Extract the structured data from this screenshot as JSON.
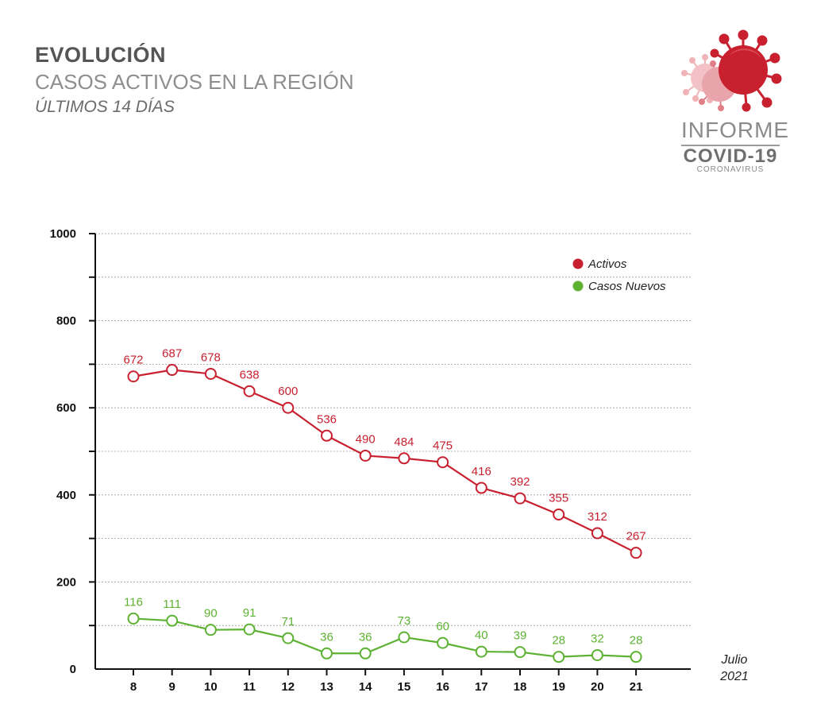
{
  "header": {
    "title": "EVOLUCIÓN",
    "subtitle": "CASOS ACTIVOS EN LA REGIÓN",
    "period": "ÚLTIMOS 14 DÍAS"
  },
  "logo": {
    "line1": "INFORME",
    "line2": "COVID-19",
    "line3": "CORONAVIRUS",
    "icon": "virus-icon"
  },
  "chart_data": {
    "type": "line",
    "x": [
      "8",
      "9",
      "10",
      "11",
      "12",
      "13",
      "14",
      "15",
      "16",
      "17",
      "18",
      "19",
      "20",
      "21"
    ],
    "ylim": [
      0,
      1000
    ],
    "yticks": [
      "1000",
      "800",
      "600",
      "400",
      "200",
      "0"
    ],
    "yticks_values": [
      1000,
      800,
      600,
      400,
      200,
      0
    ],
    "grid": true,
    "legend_position": "top-right",
    "x_note_line1": "Julio",
    "x_note_line2": "2021",
    "series": [
      {
        "name": "Activos",
        "color": "#c8202f",
        "values": [
          672,
          687,
          678,
          638,
          600,
          536,
          490,
          484,
          475,
          416,
          392,
          355,
          312,
          267
        ],
        "labels": [
          "672",
          "687",
          "678",
          "638",
          "600",
          "536",
          "490",
          "484",
          "475",
          "416",
          "392",
          "355",
          "312",
          "267"
        ]
      },
      {
        "name": "Casos Nuevos",
        "color": "#5db233",
        "values": [
          116,
          111,
          90,
          91,
          71,
          36,
          36,
          73,
          60,
          40,
          39,
          28,
          32,
          28
        ],
        "labels": [
          "116",
          "111",
          "90",
          "91",
          "71",
          "36",
          "36",
          "73",
          "60",
          "40",
          "39",
          "28",
          "32",
          "28"
        ]
      }
    ]
  }
}
